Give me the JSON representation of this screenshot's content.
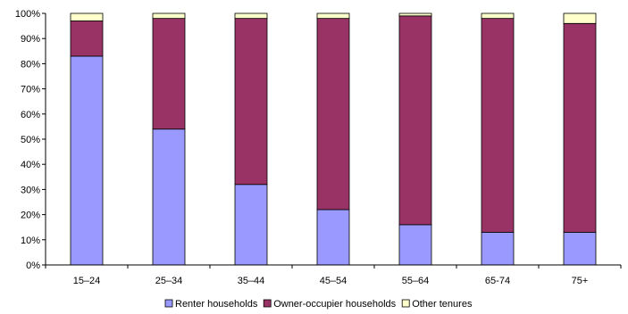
{
  "chart_data": {
    "type": "bar",
    "stacked": true,
    "percent": true,
    "categories": [
      "15–24",
      "25–34",
      "35–44",
      "45–54",
      "55–64",
      "65-74",
      "75+"
    ],
    "series": [
      {
        "name": "Renter households",
        "color": "#9999ff",
        "values": [
          83,
          54,
          32,
          22,
          16,
          13,
          13
        ]
      },
      {
        "name": "Owner-occupier households",
        "color": "#993366",
        "values": [
          14,
          44,
          66,
          76,
          83,
          85,
          83
        ]
      },
      {
        "name": "Other tenures",
        "color": "#ffffcc",
        "values": [
          3,
          2,
          2,
          2,
          1,
          2,
          4
        ]
      }
    ],
    "yticks": [
      "0%",
      "10%",
      "20%",
      "30%",
      "40%",
      "50%",
      "60%",
      "70%",
      "80%",
      "90%",
      "100%"
    ],
    "ylim": [
      0,
      100
    ],
    "grid": false,
    "legend": "bottom-center"
  }
}
